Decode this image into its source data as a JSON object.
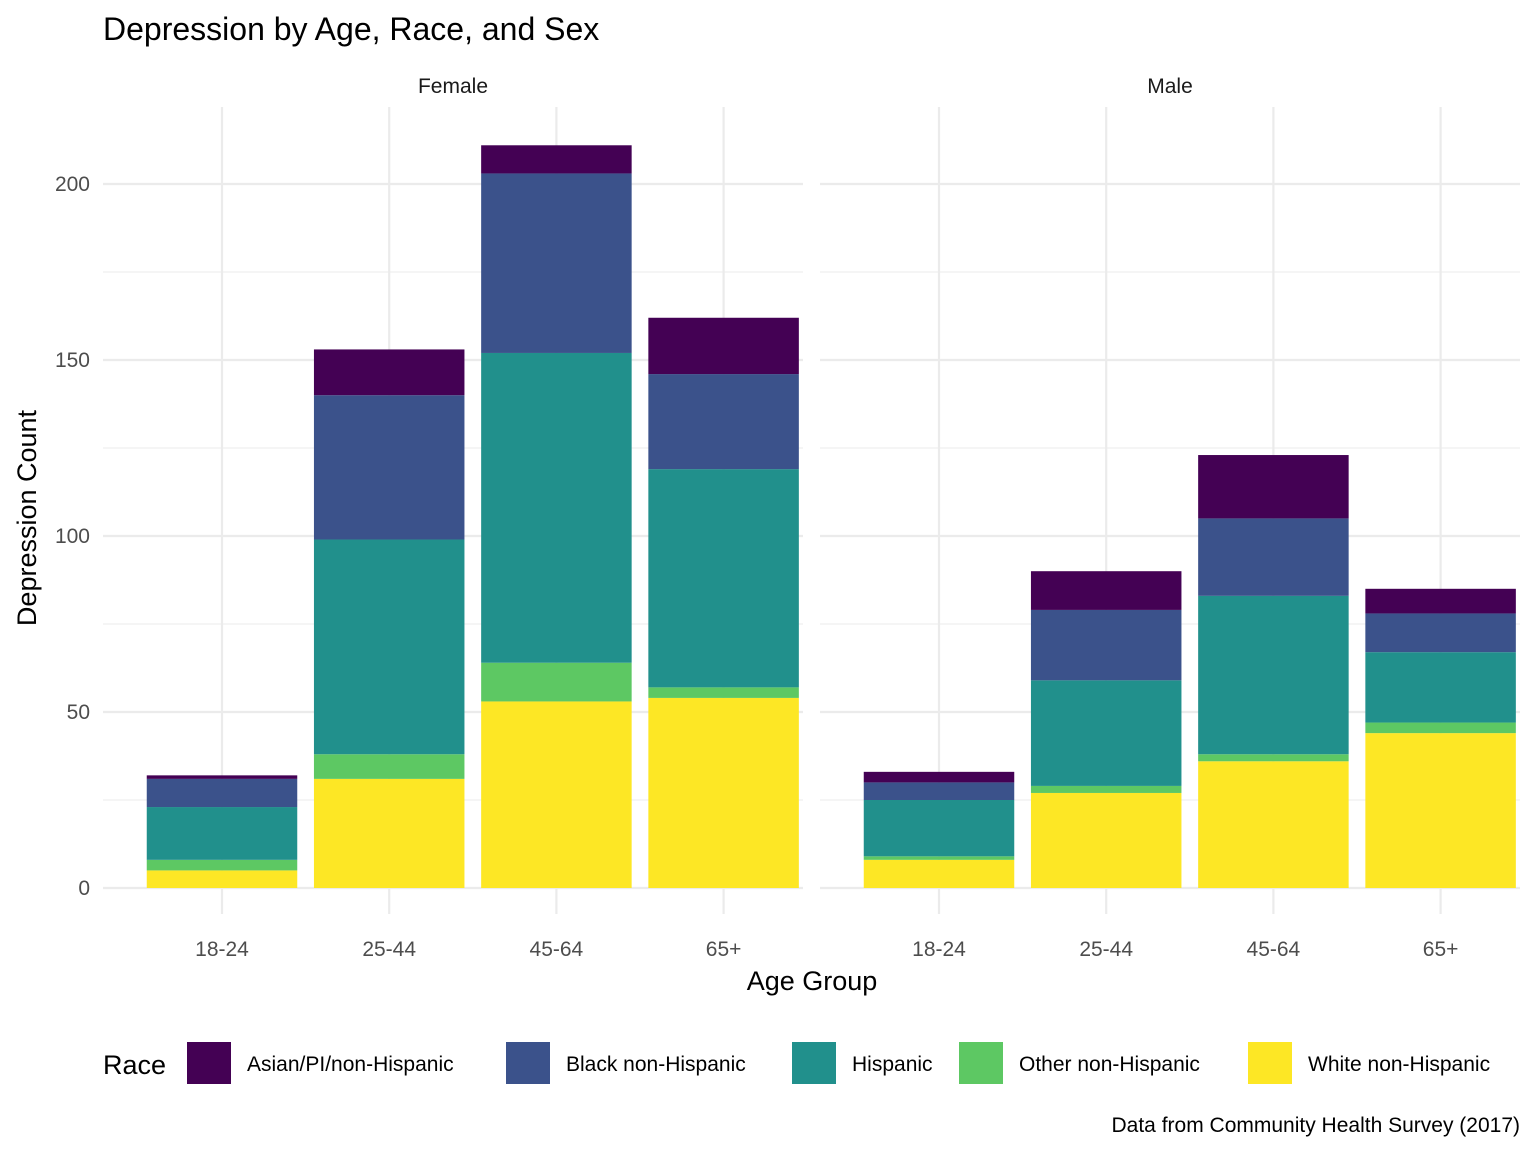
{
  "chart_data": {
    "type": "bar",
    "stacked": true,
    "title": "Depression by Age, Race, and Sex",
    "xlabel": "Age Group",
    "ylabel": "Depression Count",
    "caption": "Data from Community Health Survey (2017)",
    "ylim": [
      0,
      220
    ],
    "y_ticks": [
      0,
      50,
      100,
      150,
      200
    ],
    "categories": [
      "18-24",
      "25-44",
      "45-64",
      "65+"
    ],
    "grid": true,
    "legend_title": "Race",
    "legend_position": "bottom",
    "facets": [
      {
        "name": "Female",
        "series": [
          {
            "name": "White non-Hispanic",
            "color": "#FDE725",
            "values": [
              5,
              31,
              53,
              54
            ]
          },
          {
            "name": "Other non-Hispanic",
            "color": "#5DC863",
            "values": [
              3,
              7,
              11,
              3
            ]
          },
          {
            "name": "Hispanic",
            "color": "#21908C",
            "values": [
              15,
              61,
              88,
              62
            ]
          },
          {
            "name": "Black non-Hispanic",
            "color": "#3B528B",
            "values": [
              8,
              41,
              51,
              27
            ]
          },
          {
            "name": "Asian/PI/non-Hispanic",
            "color": "#440154",
            "values": [
              1,
              13,
              8,
              16
            ]
          }
        ]
      },
      {
        "name": "Male",
        "series": [
          {
            "name": "White non-Hispanic",
            "color": "#FDE725",
            "values": [
              8,
              27,
              36,
              44
            ]
          },
          {
            "name": "Other non-Hispanic",
            "color": "#5DC863",
            "values": [
              1,
              2,
              2,
              3
            ]
          },
          {
            "name": "Hispanic",
            "color": "#21908C",
            "values": [
              16,
              30,
              45,
              20
            ]
          },
          {
            "name": "Black non-Hispanic",
            "color": "#3B528B",
            "values": [
              5,
              20,
              22,
              11
            ]
          },
          {
            "name": "Asian/PI/non-Hispanic",
            "color": "#440154",
            "values": [
              3,
              11,
              18,
              7
            ]
          }
        ]
      }
    ],
    "legend_order": [
      "Asian/PI/non-Hispanic",
      "Black non-Hispanic",
      "Hispanic",
      "Other non-Hispanic",
      "White non-Hispanic"
    ]
  }
}
